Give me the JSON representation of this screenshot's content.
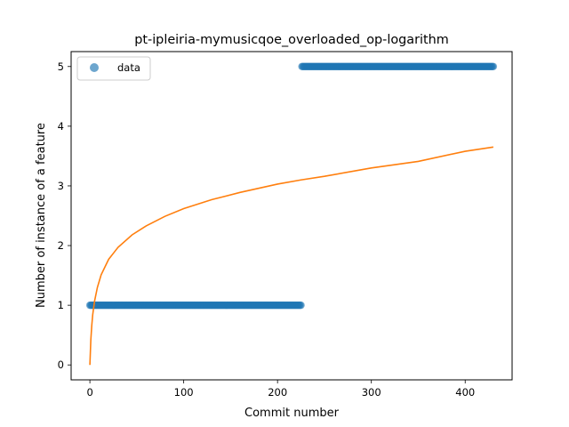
{
  "chart_data": {
    "type": "scatter",
    "title": "pt-ipleiria-mymusicqoe_overloaded_op-logarithm",
    "xlabel": "Commit number",
    "ylabel": "Number of instance of a feature",
    "xlim": [
      -20,
      450
    ],
    "ylim": [
      -0.25,
      5.25
    ],
    "xticks": [
      0,
      100,
      200,
      300,
      400
    ],
    "yticks": [
      0,
      1,
      2,
      3,
      4,
      5
    ],
    "legend": {
      "placement": "top-left",
      "entries": [
        "data"
      ]
    },
    "grid": false,
    "series": [
      {
        "name": "data",
        "kind": "scatter",
        "color": "#1f77b4",
        "segments": [
          {
            "x_start": 0,
            "x_end": 225,
            "y": 1
          },
          {
            "x_start": 226,
            "x_end": 430,
            "y": 5
          }
        ]
      },
      {
        "kind": "line",
        "color": "#ff7f0e",
        "x": [
          0,
          1,
          2,
          3,
          5,
          8,
          12,
          20,
          30,
          45,
          60,
          80,
          100,
          130,
          160,
          200,
          225,
          250,
          300,
          350,
          400,
          430
        ],
        "y": [
          0.0,
          0.42,
          0.66,
          0.84,
          1.07,
          1.3,
          1.51,
          1.77,
          1.97,
          2.18,
          2.33,
          2.49,
          2.62,
          2.77,
          2.89,
          3.03,
          3.1,
          3.16,
          3.3,
          3.41,
          3.58,
          3.65
        ]
      }
    ]
  }
}
